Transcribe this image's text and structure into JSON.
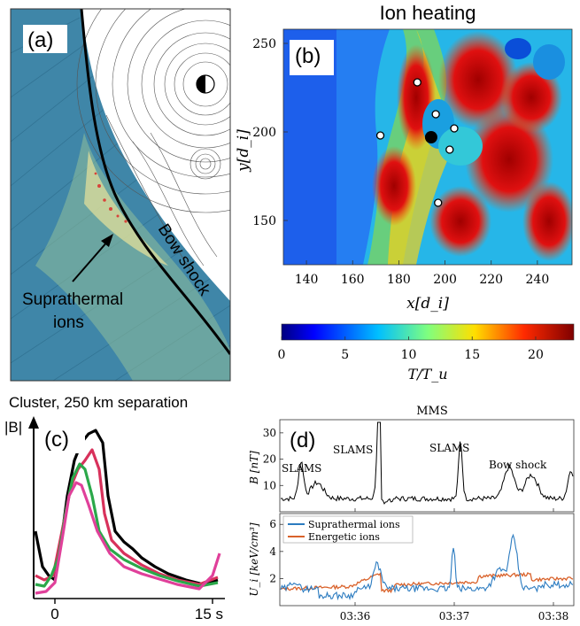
{
  "panel_a": {
    "label": "(a)",
    "annotation_suprathermal_line1": "Suprathermal",
    "annotation_suprathermal_line2": "ions",
    "annotation_bow_shock": "Bow shock",
    "colors": {
      "background": "#3f86a8",
      "planet_side": "#ffffff",
      "shock": "#000000"
    }
  },
  "panel_b": {
    "label": "(b)",
    "title": "Ion heating",
    "xlabel": "x[d_i]",
    "ylabel": "y[d_i]",
    "xticks": [
      "140",
      "160",
      "180",
      "200",
      "220",
      "240"
    ],
    "yticks": [
      "150",
      "200",
      "250"
    ],
    "colorbar_ticks": [
      "0",
      "5",
      "10",
      "15",
      "20"
    ],
    "colorbar_label": "T/T_u",
    "markers": [
      {
        "x": 188,
        "y": 228
      },
      {
        "x": 196,
        "y": 210
      },
      {
        "x": 172,
        "y": 198
      },
      {
        "x": 204,
        "y": 202
      },
      {
        "x": 202,
        "y": 190
      },
      {
        "x": 197,
        "y": 160
      }
    ],
    "big_marker": {
      "x": 194,
      "y": 197
    }
  },
  "panel_c": {
    "label": "(c)",
    "title": "Cluster, 250 km separation",
    "ylabel": "|B|",
    "xticks": [
      "0",
      "15 s"
    ],
    "series_colors": [
      "#000000",
      "#d8315b",
      "#2ba84a",
      "#e0409a"
    ]
  },
  "panel_d": {
    "label": "(d)",
    "title": "MMS",
    "top_ylabel": "B [nT]",
    "top_yticks": [
      "10",
      "20",
      "30"
    ],
    "annotations": [
      "SLAMS",
      "SLAMS",
      "SLAMS",
      "Bow shock"
    ],
    "bottom_ylabel": "U_i [keV/cm³]",
    "bottom_yticks": [
      "2",
      "4",
      "6"
    ],
    "xticks": [
      "03:36",
      "03:37",
      "03:38"
    ],
    "legend": [
      {
        "name": "Suprathermal ions",
        "color": "#2b7bc0"
      },
      {
        "name": "Energetic ions",
        "color": "#d9622b"
      }
    ]
  }
}
